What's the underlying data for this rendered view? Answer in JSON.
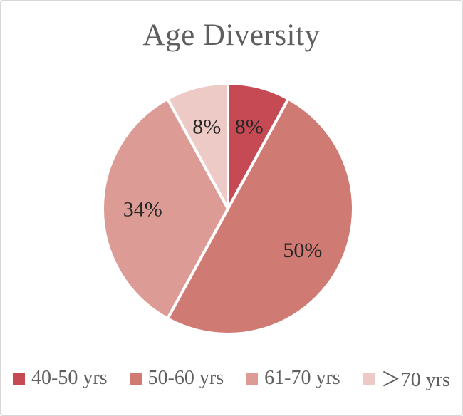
{
  "frame": {
    "background": "#ffffff",
    "border_color": "#d8d8d8"
  },
  "chart_data": {
    "type": "pie",
    "title": "Age Diversity",
    "categories": [
      "40-50 yrs",
      "50-60 yrs",
      "61-70 yrs",
      "＞70 yrs"
    ],
    "values": [
      8,
      50,
      34,
      8
    ],
    "slice_labels": [
      "8%",
      "50%",
      "34%",
      "8%"
    ],
    "colors": [
      "#c64a54",
      "#d07a74",
      "#dd9b95",
      "#eecac6"
    ],
    "start_angle_deg": 0,
    "direction": "clockwise",
    "slice_border_color": "#ffffff",
    "label_color": "#262626",
    "title_color": "#5f5f5f",
    "legend_text_color": "#5f5f5f",
    "legend_position": "bottom",
    "grid": false
  }
}
